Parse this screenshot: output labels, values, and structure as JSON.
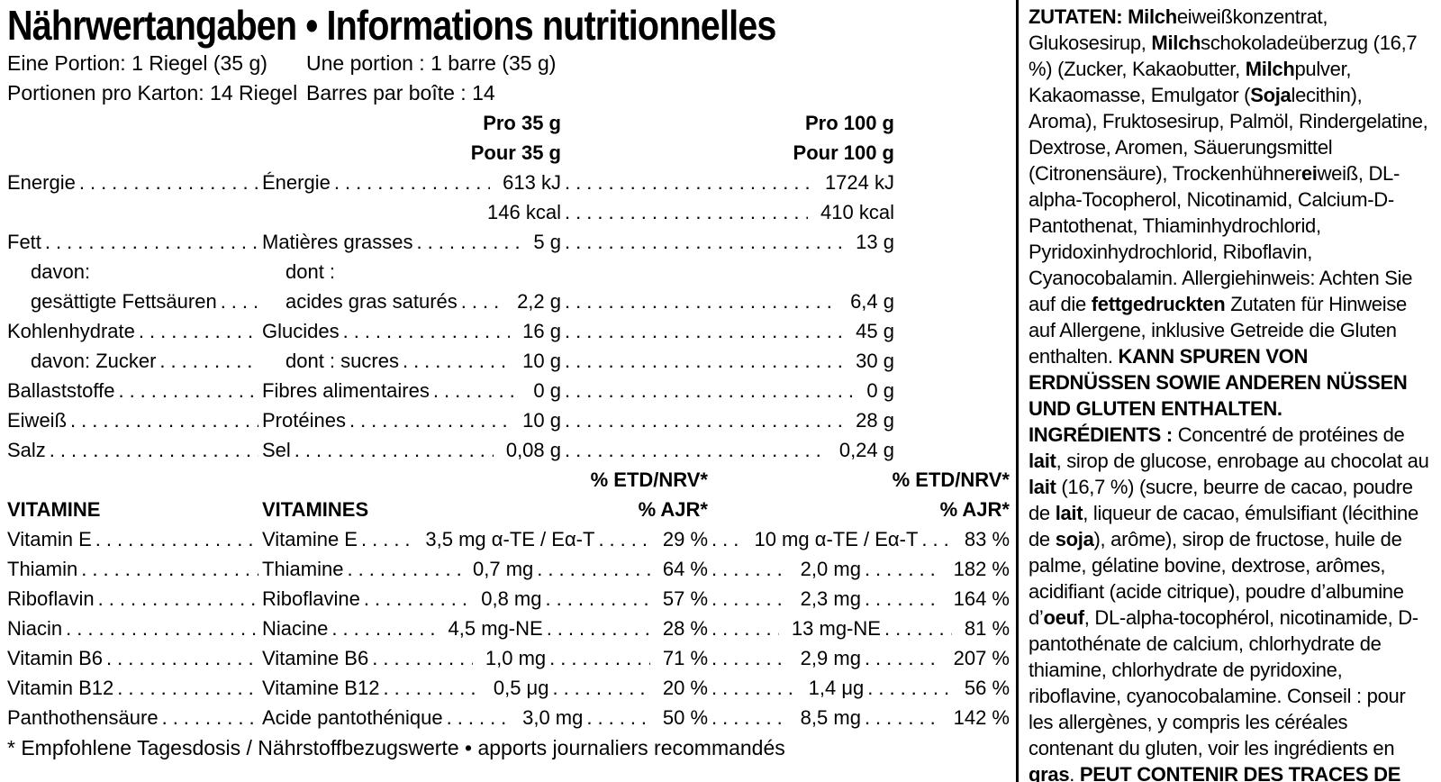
{
  "title": "Nährwertangaben • Informations nutritionnelles",
  "serving": {
    "de_portion": "Eine Portion: 1 Riegel (35 g)",
    "fr_portion": "Une portion : 1 barre (35 g)",
    "de_per_box": "Portionen pro Karton: 14 Riegel",
    "fr_per_box": "Barres par boîte : 14"
  },
  "columns": {
    "per35_de": "Pro 35 g",
    "per35_fr": "Pour 35 g",
    "per100_de": "Pro 100 g",
    "per100_fr": "Pour 100 g"
  },
  "nutrients": [
    {
      "de": "Energie",
      "fr": "Énergie",
      "v35": "613 kJ",
      "v100": "1724 kJ"
    },
    {
      "de": "",
      "fr": "",
      "v35": "146 kcal",
      "v100": "410 kcal"
    },
    {
      "de": "Fett",
      "fr": "Matières grasses",
      "v35": "5 g",
      "v100": "13 g"
    },
    {
      "de": "davon:",
      "fr": "dont :",
      "v35": "",
      "v100": ""
    },
    {
      "de": "gesättigte Fettsäuren",
      "fr": "acides gras saturés",
      "v35": "2,2 g",
      "v100": "6,4 g"
    },
    {
      "de": "Kohlenhydrate",
      "fr": "Glucides",
      "v35": "16 g",
      "v100": "45 g"
    },
    {
      "de": "davon: Zucker",
      "fr": "dont : sucres",
      "v35": "10 g",
      "v100": "30 g"
    },
    {
      "de": "Ballaststoffe",
      "fr": "Fibres alimentaires",
      "v35": "0 g",
      "v100": "0 g"
    },
    {
      "de": "Eiweiß",
      "fr": "Protéines",
      "v35": "10 g",
      "v100": "28 g"
    },
    {
      "de": "Salz",
      "fr": "Sel",
      "v35": "0,08 g",
      "v100": "0,24 g"
    }
  ],
  "vitamins_header": {
    "etd": "% ETD/NRV*",
    "ajr": "% AJR*",
    "de": "VITAMINE",
    "fr": "VITAMINES"
  },
  "vitamins": [
    {
      "de": "Vitamin E",
      "fr": "Vitamine E",
      "a35": "3,5 mg α-TE / Eα-T",
      "p35": "29 %",
      "a100": "10 mg α-TE / Eα-T",
      "p100": "83 %"
    },
    {
      "de": "Thiamin",
      "fr": "Thiamine",
      "a35": "0,7 mg",
      "p35": "64 %",
      "a100": "2,0 mg",
      "p100": "182 %"
    },
    {
      "de": "Riboflavin",
      "fr": "Riboflavine",
      "a35": "0,8 mg",
      "p35": "57 %",
      "a100": "2,3 mg",
      "p100": "164 %"
    },
    {
      "de": "Niacin",
      "fr": "Niacine",
      "a35": "4,5 mg-NE",
      "p35": "28 %",
      "a100": "13 mg-NE",
      "p100": "81 %"
    },
    {
      "de": "Vitamin B6",
      "fr": "Vitamine B6",
      "a35": "1,0 mg",
      "p35": "71 %",
      "a100": "2,9 mg",
      "p100": "207 %"
    },
    {
      "de": "Vitamin B12",
      "fr": "Vitamine B12",
      "a35": "0,5 μg",
      "p35": "20 %",
      "a100": "1,4 μg",
      "p100": "56 %"
    },
    {
      "de": "Panthothensäure",
      "fr": "Acide pantothénique",
      "a35": "3,0 mg",
      "p35": "50 %",
      "a100": "8,5 mg",
      "p100": "142 %"
    }
  ],
  "footnote": "* Empfohlene Tagesdosis / Nährstoffbezugswerte • apports journaliers recommandés",
  "ingredients_de": {
    "segments": [
      {
        "t": "ZUTATEN: Milch",
        "b": true
      },
      {
        "t": "eiweißkonzentrat, Glukosesirup, ",
        "b": false
      },
      {
        "t": "Milch",
        "b": true
      },
      {
        "t": "schokoladeüberzug (16,7 %) (Zucker, Kakaobutter, ",
        "b": false
      },
      {
        "t": "Milch",
        "b": true
      },
      {
        "t": "pulver, Kakaomasse, Emulgator (",
        "b": false
      },
      {
        "t": "Soja",
        "b": true
      },
      {
        "t": "lecithin), Aroma), Fruktosesirup, Palmöl, Rindergelatine, Dextrose, Aromen, Säuerungsmittel (Citronensäure), Trockenhühner",
        "b": false
      },
      {
        "t": "ei",
        "b": true
      },
      {
        "t": "weiß, DL-alpha-Tocopherol, Nicotinamid, Calcium-D-Pantothenat, Thiaminhydrochlorid, Pyridoxinhydrochlorid, Riboflavin, Cyanocobalamin. Allergiehinweis: Achten Sie auf die ",
        "b": false
      },
      {
        "t": "fettgedruckten",
        "b": true
      },
      {
        "t": " Zutaten für Hinweise auf Allergene, inklusive Getreide die Gluten enthalten. ",
        "b": false
      },
      {
        "t": "KANN SPUREN VON ERDNÜSSEN SOWIE ANDEREN NÜSSEN UND GLUTEN ENTHALTEN.",
        "b": true
      }
    ]
  },
  "ingredients_fr": {
    "segments": [
      {
        "t": "INGRÉDIENTS : ",
        "b": true
      },
      {
        "t": "Concentré de protéines de ",
        "b": false
      },
      {
        "t": "lait",
        "b": true
      },
      {
        "t": ", sirop de glucose, enrobage au chocolat au ",
        "b": false
      },
      {
        "t": "lait",
        "b": true
      },
      {
        "t": " (16,7 %) (sucre, beurre de cacao, poudre de ",
        "b": false
      },
      {
        "t": "lait",
        "b": true
      },
      {
        "t": ", liqueur de cacao, émulsifiant (lécithine de ",
        "b": false
      },
      {
        "t": "soja",
        "b": true
      },
      {
        "t": "), arôme), sirop de fructose, huile de palme, gélatine bovine, dextrose, arômes, acidifiant (acide citrique), poudre d’albumine d’",
        "b": false
      },
      {
        "t": "oeuf",
        "b": true
      },
      {
        "t": ", DL-alpha-tocophérol, nicotinamide, D-pantothénate de calcium, chlorhydrate de thiamine, chlorhydrate de pyridoxine, riboflavine, cyanocobalamine. Conseil : pour les allergènes, y compris les céréales contenant du gluten, voir les ingrédients en ",
        "b": false
      },
      {
        "t": "gras",
        "b": true
      },
      {
        "t": ". ",
        "b": false
      },
      {
        "t": "PEUT CONTENIR DES TRACES DE CACAHUÈTES, DE NOIX ET DE GLUTEN.",
        "b": true
      }
    ]
  }
}
